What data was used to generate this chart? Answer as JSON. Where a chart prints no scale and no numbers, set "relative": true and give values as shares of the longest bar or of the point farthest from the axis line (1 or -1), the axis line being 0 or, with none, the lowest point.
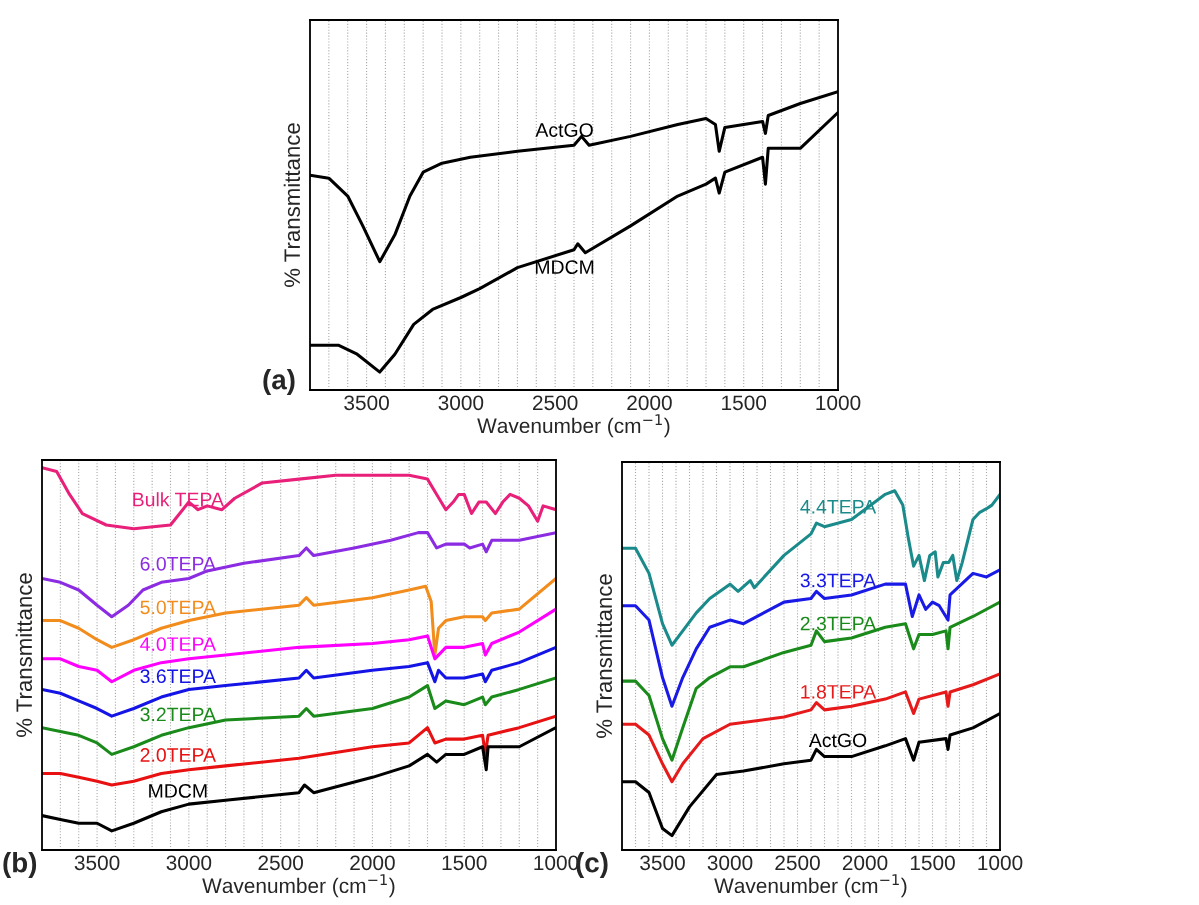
{
  "chart_data": [
    {
      "type": "line",
      "relative": true,
      "xlabel": "Wavenumber (cm$^{−1}$)",
      "ylabel": "% Transmittance",
      "annotations": [
        "(a)"
      ],
      "xlim": [
        3800,
        1000
      ],
      "xticks": [
        {
          "value": 3800,
          "label": null
        },
        {
          "value": 3700,
          "label": null
        },
        {
          "value": 3600,
          "label": null
        },
        3500,
        {
          "value": 3400,
          "label": null
        },
        {
          "value": 3300,
          "label": null
        },
        {
          "value": 3200,
          "label": null
        },
        {
          "value": 3100,
          "label": null
        },
        3000,
        {
          "value": 2900,
          "label": null
        },
        {
          "value": 2800,
          "label": null
        },
        {
          "value": 2700,
          "label": null
        },
        {
          "value": 2600,
          "label": null
        },
        2500,
        {
          "value": 2400,
          "label": null
        },
        {
          "value": 2300,
          "label": null
        },
        {
          "value": 2200,
          "label": null
        },
        {
          "value": 2100,
          "label": null
        },
        2000,
        {
          "value": 1900,
          "label": null
        },
        {
          "value": 1800,
          "label": null
        },
        {
          "value": 1700,
          "label": null
        },
        {
          "value": 1600,
          "label": null
        },
        1500,
        {
          "value": 1400,
          "label": null
        },
        {
          "value": 1300,
          "label": null
        },
        {
          "value": 1200,
          "label": null
        },
        {
          "value": 1100,
          "label": null
        },
        1000
      ],
      "grid": "x",
      "legend": false,
      "tick_labels": "x",
      "line_style": "solid",
      "series": [
        {
          "name": "ActGO",
          "color": "#000000",
          "x": [
            3800,
            3700,
            3600,
            3520,
            3430,
            3350,
            3270,
            3200,
            3100,
            2950,
            2700,
            2400,
            2360,
            2320,
            2100,
            1850,
            1700,
            1650,
            1630,
            1600,
            1500,
            1400,
            1385,
            1370,
            1200,
            1000
          ],
          "values": [
            0.72,
            0.71,
            0.65,
            0.55,
            0.43,
            0.52,
            0.65,
            0.73,
            0.76,
            0.78,
            0.8,
            0.82,
            0.85,
            0.82,
            0.85,
            0.89,
            0.91,
            0.89,
            0.8,
            0.88,
            0.89,
            0.9,
            0.86,
            0.92,
            0.96,
            1.0
          ]
        },
        {
          "name": "MDCM",
          "color": "#000000",
          "x": [
            3800,
            3650,
            3550,
            3430,
            3350,
            3250,
            3150,
            3000,
            2900,
            2700,
            2400,
            2380,
            2340,
            2100,
            1850,
            1700,
            1650,
            1630,
            1600,
            1400,
            1385,
            1370,
            1200,
            1000
          ],
          "values": [
            0.15,
            0.15,
            0.12,
            0.06,
            0.12,
            0.22,
            0.27,
            0.31,
            0.34,
            0.41,
            0.47,
            0.49,
            0.46,
            0.55,
            0.65,
            0.69,
            0.71,
            0.66,
            0.73,
            0.78,
            0.69,
            0.81,
            0.81,
            0.93
          ]
        }
      ]
    },
    {
      "type": "line",
      "relative": true,
      "xlabel": "Wavenumber (cm$^{−1}$)",
      "ylabel": "% Transmittance",
      "annotations": [
        "(b)"
      ],
      "xlim": [
        3800,
        1000
      ],
      "xticks": [
        {
          "value": 3800,
          "label": null
        },
        {
          "value": 3700,
          "label": null
        },
        {
          "value": 3600,
          "label": null
        },
        3500,
        {
          "value": 3400,
          "label": null
        },
        {
          "value": 3300,
          "label": null
        },
        {
          "value": 3200,
          "label": null
        },
        {
          "value": 3100,
          "label": null
        },
        3000,
        {
          "value": 2900,
          "label": null
        },
        {
          "value": 2800,
          "label": null
        },
        {
          "value": 2700,
          "label": null
        },
        {
          "value": 2600,
          "label": null
        },
        2500,
        {
          "value": 2400,
          "label": null
        },
        {
          "value": 2300,
          "label": null
        },
        {
          "value": 2200,
          "label": null
        },
        {
          "value": 2100,
          "label": null
        },
        2000,
        {
          "value": 1900,
          "label": null
        },
        {
          "value": 1800,
          "label": null
        },
        {
          "value": 1700,
          "label": null
        },
        {
          "value": 1600,
          "label": null
        },
        1500,
        {
          "value": 1400,
          "label": null
        },
        {
          "value": 1300,
          "label": null
        },
        {
          "value": 1200,
          "label": null
        },
        {
          "value": 1100,
          "label": null
        },
        1000
      ],
      "grid": "x",
      "legend": false,
      "tick_labels": "x",
      "line_style": "solid",
      "series": [
        {
          "name": "Bulk TEPA",
          "color": "#e8207a",
          "x": [
            3800,
            3720,
            3650,
            3580,
            3450,
            3300,
            3100,
            3000,
            2950,
            2900,
            2820,
            2750,
            2600,
            2400,
            2200,
            2000,
            1800,
            1700,
            1650,
            1600,
            1560,
            1530,
            1500,
            1460,
            1420,
            1380,
            1330,
            1290,
            1250,
            1200,
            1150,
            1100,
            1070,
            1000
          ],
          "values": [
            1.0,
            0.99,
            0.93,
            0.88,
            0.85,
            0.84,
            0.85,
            0.91,
            0.89,
            0.9,
            0.89,
            0.92,
            0.96,
            0.97,
            0.98,
            0.98,
            0.98,
            0.97,
            0.93,
            0.89,
            0.91,
            0.93,
            0.93,
            0.88,
            0.91,
            0.91,
            0.88,
            0.91,
            0.93,
            0.92,
            0.9,
            0.86,
            0.9,
            0.89
          ]
        },
        {
          "name": "6.0TEPA",
          "color": "#8b2be2",
          "x": [
            3800,
            3700,
            3600,
            3500,
            3420,
            3330,
            3250,
            3150,
            3000,
            2900,
            2700,
            2400,
            2360,
            2320,
            2100,
            1900,
            1750,
            1700,
            1650,
            1600,
            1500,
            1470,
            1400,
            1380,
            1350,
            1200,
            1000
          ],
          "values": [
            0.71,
            0.7,
            0.68,
            0.64,
            0.61,
            0.64,
            0.68,
            0.7,
            0.71,
            0.73,
            0.75,
            0.77,
            0.79,
            0.77,
            0.79,
            0.81,
            0.83,
            0.83,
            0.79,
            0.8,
            0.8,
            0.79,
            0.8,
            0.78,
            0.81,
            0.81,
            0.83
          ]
        },
        {
          "name": "5.0TEPA",
          "color": "#f28c1c",
          "x": [
            3800,
            3700,
            3600,
            3500,
            3420,
            3300,
            3150,
            3000,
            2800,
            2400,
            2360,
            2320,
            2000,
            1800,
            1710,
            1680,
            1660,
            1640,
            1600,
            1500,
            1400,
            1385,
            1350,
            1200,
            1000
          ],
          "values": [
            0.6,
            0.6,
            0.58,
            0.55,
            0.53,
            0.55,
            0.58,
            0.6,
            0.62,
            0.64,
            0.66,
            0.64,
            0.66,
            0.68,
            0.69,
            0.65,
            0.51,
            0.58,
            0.6,
            0.61,
            0.61,
            0.6,
            0.62,
            0.63,
            0.71
          ]
        },
        {
          "name": "4.0TEPA",
          "color": "#ff00ff",
          "x": [
            3800,
            3700,
            3600,
            3500,
            3420,
            3300,
            3150,
            3000,
            2800,
            2400,
            2000,
            1800,
            1700,
            1660,
            1600,
            1500,
            1400,
            1385,
            1350,
            1200,
            1000
          ],
          "values": [
            0.5,
            0.5,
            0.48,
            0.47,
            0.44,
            0.47,
            0.49,
            0.5,
            0.51,
            0.53,
            0.54,
            0.55,
            0.56,
            0.5,
            0.53,
            0.53,
            0.54,
            0.51,
            0.54,
            0.57,
            0.63
          ]
        },
        {
          "name": "3.6TEPA",
          "color": "#1414e6",
          "x": [
            3800,
            3700,
            3600,
            3500,
            3420,
            3300,
            3150,
            3000,
            2800,
            2400,
            2360,
            2320,
            2000,
            1800,
            1700,
            1660,
            1640,
            1600,
            1500,
            1400,
            1385,
            1350,
            1200,
            1000
          ],
          "values": [
            0.42,
            0.41,
            0.39,
            0.37,
            0.35,
            0.37,
            0.4,
            0.42,
            0.43,
            0.45,
            0.47,
            0.45,
            0.47,
            0.48,
            0.49,
            0.44,
            0.47,
            0.45,
            0.45,
            0.46,
            0.44,
            0.47,
            0.49,
            0.53
          ]
        },
        {
          "name": "3.2TEPA",
          "color": "#1a8a1a",
          "x": [
            3800,
            3700,
            3600,
            3500,
            3420,
            3300,
            3150,
            3000,
            2800,
            2400,
            2360,
            2320,
            2000,
            1800,
            1700,
            1660,
            1600,
            1500,
            1400,
            1385,
            1350,
            1200,
            1000
          ],
          "values": [
            0.32,
            0.31,
            0.3,
            0.28,
            0.25,
            0.27,
            0.3,
            0.32,
            0.34,
            0.35,
            0.37,
            0.35,
            0.37,
            0.4,
            0.43,
            0.37,
            0.39,
            0.38,
            0.4,
            0.38,
            0.4,
            0.42,
            0.45
          ]
        },
        {
          "name": "2.0TEPA",
          "color": "#e81010",
          "x": [
            3800,
            3700,
            3600,
            3500,
            3420,
            3300,
            3150,
            3000,
            2800,
            2400,
            2000,
            1800,
            1700,
            1660,
            1600,
            1500,
            1400,
            1385,
            1370,
            1200,
            1000
          ],
          "values": [
            0.2,
            0.2,
            0.19,
            0.18,
            0.17,
            0.18,
            0.2,
            0.21,
            0.22,
            0.24,
            0.27,
            0.28,
            0.32,
            0.28,
            0.29,
            0.29,
            0.3,
            0.25,
            0.3,
            0.32,
            0.35
          ]
        },
        {
          "name": "MDCM",
          "color": "#000000",
          "x": [
            3800,
            3700,
            3600,
            3500,
            3420,
            3300,
            3150,
            3000,
            2800,
            2400,
            2370,
            2320,
            2000,
            1800,
            1700,
            1650,
            1600,
            1500,
            1400,
            1380,
            1370,
            1200,
            1000
          ],
          "values": [
            0.09,
            0.08,
            0.07,
            0.07,
            0.05,
            0.07,
            0.1,
            0.12,
            0.13,
            0.15,
            0.17,
            0.15,
            0.19,
            0.22,
            0.25,
            0.23,
            0.25,
            0.25,
            0.27,
            0.21,
            0.27,
            0.27,
            0.32
          ]
        }
      ]
    },
    {
      "type": "line",
      "relative": true,
      "xlabel": "Wavenumber (cm$^{−1}$)",
      "ylabel": "% Transmittance",
      "annotations": [
        "(c)"
      ],
      "xlim": [
        3800,
        1000
      ],
      "xticks": [
        {
          "value": 3800,
          "label": null
        },
        {
          "value": 3700,
          "label": null
        },
        {
          "value": 3600,
          "label": null
        },
        3500,
        {
          "value": 3400,
          "label": null
        },
        {
          "value": 3300,
          "label": null
        },
        {
          "value": 3200,
          "label": null
        },
        {
          "value": 3100,
          "label": null
        },
        3000,
        {
          "value": 2900,
          "label": null
        },
        {
          "value": 2800,
          "label": null
        },
        {
          "value": 2700,
          "label": null
        },
        {
          "value": 2600,
          "label": null
        },
        2500,
        {
          "value": 2400,
          "label": null
        },
        {
          "value": 2300,
          "label": null
        },
        {
          "value": 2200,
          "label": null
        },
        {
          "value": 2100,
          "label": null
        },
        2000,
        {
          "value": 1900,
          "label": null
        },
        {
          "value": 1800,
          "label": null
        },
        {
          "value": 1700,
          "label": null
        },
        {
          "value": 1600,
          "label": null
        },
        1500,
        {
          "value": 1400,
          "label": null
        },
        {
          "value": 1300,
          "label": null
        },
        {
          "value": 1200,
          "label": null
        },
        {
          "value": 1100,
          "label": null
        },
        1000
      ],
      "grid": "x",
      "legend": false,
      "tick_labels": "x",
      "line_style": "solid",
      "series": [
        {
          "name": "4.4TEPA",
          "color": "#1a8a8a",
          "x": [
            3800,
            3700,
            3600,
            3500,
            3430,
            3350,
            3250,
            3150,
            3000,
            2940,
            2850,
            2820,
            2600,
            2400,
            2360,
            2300,
            2100,
            1850,
            1780,
            1720,
            1680,
            1640,
            1600,
            1560,
            1520,
            1480,
            1460,
            1420,
            1380,
            1350,
            1320,
            1280,
            1200,
            1150,
            1100,
            1060,
            1000
          ],
          "values": [
            0.84,
            0.84,
            0.77,
            0.63,
            0.57,
            0.61,
            0.66,
            0.7,
            0.74,
            0.72,
            0.75,
            0.73,
            0.82,
            0.88,
            0.91,
            0.9,
            0.92,
            0.99,
            1.0,
            0.96,
            0.87,
            0.79,
            0.82,
            0.75,
            0.82,
            0.83,
            0.76,
            0.8,
            0.8,
            0.82,
            0.75,
            0.8,
            0.92,
            0.94,
            0.95,
            0.96,
            0.99
          ]
        },
        {
          "name": "3.3TEPA",
          "color": "#1a1ae6",
          "x": [
            3800,
            3700,
            3600,
            3500,
            3430,
            3350,
            3250,
            3150,
            3000,
            2900,
            2600,
            2400,
            2360,
            2300,
            2100,
            1850,
            1700,
            1650,
            1600,
            1550,
            1500,
            1450,
            1385,
            1370,
            1200,
            1100,
            1000
          ],
          "values": [
            0.68,
            0.68,
            0.64,
            0.48,
            0.4,
            0.48,
            0.56,
            0.62,
            0.64,
            0.63,
            0.69,
            0.7,
            0.72,
            0.7,
            0.71,
            0.74,
            0.74,
            0.65,
            0.71,
            0.67,
            0.69,
            0.68,
            0.64,
            0.71,
            0.77,
            0.76,
            0.78
          ]
        },
        {
          "name": "2.3TEPA",
          "color": "#1a8a1a",
          "x": [
            3800,
            3700,
            3600,
            3500,
            3430,
            3350,
            3250,
            3150,
            3000,
            2900,
            2600,
            2400,
            2360,
            2300,
            2100,
            1850,
            1700,
            1640,
            1600,
            1500,
            1400,
            1385,
            1370,
            1200,
            1000
          ],
          "values": [
            0.47,
            0.47,
            0.43,
            0.31,
            0.25,
            0.34,
            0.45,
            0.48,
            0.51,
            0.51,
            0.55,
            0.57,
            0.61,
            0.58,
            0.59,
            0.62,
            0.63,
            0.56,
            0.6,
            0.6,
            0.61,
            0.56,
            0.62,
            0.65,
            0.69
          ]
        },
        {
          "name": "1.8TEPA",
          "color": "#e61a1a",
          "x": [
            3800,
            3700,
            3600,
            3500,
            3430,
            3350,
            3200,
            3000,
            2600,
            2400,
            2360,
            2300,
            2100,
            1850,
            1700,
            1640,
            1600,
            1400,
            1385,
            1370,
            1200,
            1000
          ],
          "values": [
            0.35,
            0.35,
            0.32,
            0.24,
            0.19,
            0.24,
            0.31,
            0.35,
            0.37,
            0.39,
            0.41,
            0.39,
            0.4,
            0.42,
            0.44,
            0.38,
            0.42,
            0.44,
            0.4,
            0.44,
            0.46,
            0.49
          ]
        },
        {
          "name": "ActGO",
          "color": "#000000",
          "x": [
            3800,
            3700,
            3600,
            3500,
            3430,
            3300,
            3100,
            2900,
            2600,
            2400,
            2360,
            2300,
            2100,
            1850,
            1700,
            1640,
            1600,
            1400,
            1385,
            1370,
            1200,
            1000
          ],
          "values": [
            0.19,
            0.19,
            0.16,
            0.06,
            0.04,
            0.12,
            0.21,
            0.22,
            0.24,
            0.25,
            0.28,
            0.26,
            0.26,
            0.29,
            0.31,
            0.25,
            0.3,
            0.31,
            0.28,
            0.32,
            0.34,
            0.38
          ]
        }
      ]
    }
  ]
}
